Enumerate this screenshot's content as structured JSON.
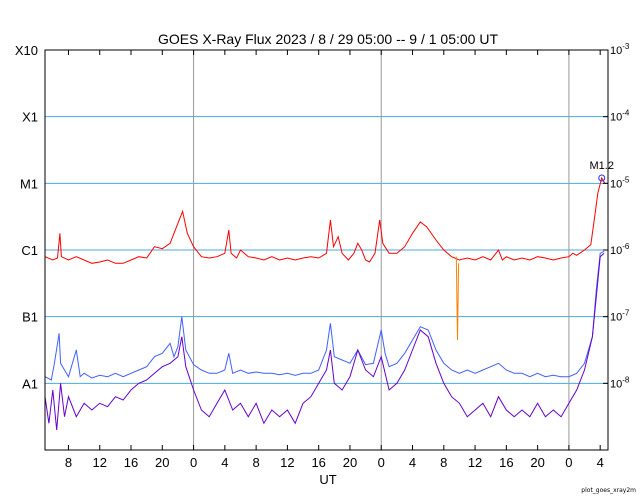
{
  "chart_data": {
    "type": "line",
    "title": "GOES X-Ray Flux   2023 /  8 / 29   05:00 --  9 /  1   05:00   UT",
    "xlabel": "UT",
    "x_tick_labels": [
      "8",
      "12",
      "16",
      "20",
      "0",
      "4",
      "8",
      "12",
      "16",
      "20",
      "0",
      "4",
      "8",
      "12",
      "16",
      "20",
      "0",
      "4"
    ],
    "x_tick_hours": [
      8,
      12,
      16,
      20,
      24,
      28,
      32,
      36,
      40,
      44,
      48,
      52,
      56,
      60,
      64,
      68,
      72,
      76
    ],
    "day_boundaries_hours": [
      24,
      48,
      72
    ],
    "xlim_hours": [
      5,
      77
    ],
    "y_left_labels": [
      "X10",
      "X1",
      "M1",
      "C1",
      "B1",
      "A1"
    ],
    "y_right_labels": [
      "10",
      "10",
      "10",
      "10",
      "10",
      "10"
    ],
    "y_right_exponents": [
      "-3",
      "-4",
      "-5",
      "-6",
      "-7",
      "-8"
    ],
    "y_log_values": [
      -3,
      -4,
      -5,
      -6,
      -7,
      -8
    ],
    "ylim_log": [
      -9,
      -3
    ],
    "y_scale": "log",
    "grid": true,
    "annotation": {
      "text": "M1.2",
      "x_hour": 76.2,
      "log_value": -4.92
    },
    "series": [
      {
        "color": "#ff0000",
        "points": [
          [
            5,
            -6.1
          ],
          [
            6,
            -6.15
          ],
          [
            6.6,
            -6.12
          ],
          [
            6.9,
            -5.75
          ],
          [
            7.1,
            -6.1
          ],
          [
            8,
            -6.15
          ],
          [
            9,
            -6.1
          ],
          [
            10,
            -6.15
          ],
          [
            11,
            -6.2
          ],
          [
            12,
            -6.18
          ],
          [
            13,
            -6.15
          ],
          [
            14,
            -6.2
          ],
          [
            15,
            -6.2
          ],
          [
            16,
            -6.15
          ],
          [
            17,
            -6.1
          ],
          [
            18,
            -6.12
          ],
          [
            19,
            -5.95
          ],
          [
            20,
            -5.98
          ],
          [
            21,
            -5.9
          ],
          [
            22,
            -5.6
          ],
          [
            22.6,
            -5.42
          ],
          [
            23.2,
            -5.75
          ],
          [
            24,
            -5.95
          ],
          [
            25,
            -6.1
          ],
          [
            26,
            -6.12
          ],
          [
            27,
            -6.1
          ],
          [
            28,
            -6.05
          ],
          [
            28.5,
            -5.7
          ],
          [
            28.8,
            -6.05
          ],
          [
            29.5,
            -6.12
          ],
          [
            30,
            -6.0
          ],
          [
            31,
            -6.1
          ],
          [
            32,
            -6.12
          ],
          [
            33,
            -6.15
          ],
          [
            34,
            -6.1
          ],
          [
            35,
            -6.15
          ],
          [
            36,
            -6.12
          ],
          [
            37,
            -6.15
          ],
          [
            38,
            -6.12
          ],
          [
            39,
            -6.1
          ],
          [
            40,
            -6.12
          ],
          [
            41,
            -6.05
          ],
          [
            41.5,
            -5.55
          ],
          [
            41.9,
            -5.95
          ],
          [
            42.5,
            -5.8
          ],
          [
            43,
            -6.05
          ],
          [
            43.8,
            -6.15
          ],
          [
            44.5,
            -6.05
          ],
          [
            45,
            -5.9
          ],
          [
            45.5,
            -6.0
          ],
          [
            46,
            -6.15
          ],
          [
            46.5,
            -6.18
          ],
          [
            47.2,
            -6.05
          ],
          [
            47.8,
            -5.55
          ],
          [
            48.2,
            -5.9
          ],
          [
            49,
            -6.05
          ],
          [
            50,
            -6.05
          ],
          [
            51,
            -5.95
          ],
          [
            52,
            -5.75
          ],
          [
            53,
            -5.58
          ],
          [
            53.8,
            -5.65
          ],
          [
            55,
            -5.85
          ],
          [
            56,
            -6.0
          ],
          [
            57,
            -6.1
          ],
          [
            58,
            -6.15
          ],
          [
            59,
            -6.12
          ],
          [
            60,
            -6.15
          ],
          [
            61,
            -6.1
          ],
          [
            62,
            -6.15
          ],
          [
            63,
            -6.0
          ],
          [
            63.5,
            -6.15
          ],
          [
            64,
            -6.1
          ],
          [
            65,
            -6.15
          ],
          [
            66,
            -6.12
          ],
          [
            67,
            -6.15
          ],
          [
            68,
            -6.1
          ],
          [
            69,
            -6.12
          ],
          [
            70,
            -6.15
          ],
          [
            71,
            -6.12
          ],
          [
            72,
            -6.1
          ],
          [
            72.5,
            -6.05
          ],
          [
            73,
            -6.08
          ],
          [
            74,
            -6.0
          ],
          [
            74.8,
            -5.92
          ],
          [
            75.3,
            -5.5
          ],
          [
            75.7,
            -5.15
          ],
          [
            76.2,
            -4.92
          ],
          [
            76.6,
            -5.0
          ]
        ]
      },
      {
        "color": "#ff8000",
        "points": [
          [
            57.6,
            -6.1
          ],
          [
            57.75,
            -7.35
          ],
          [
            57.9,
            -6.2
          ]
        ]
      },
      {
        "color": "#4060ff",
        "points": [
          [
            5,
            -7.9
          ],
          [
            5.8,
            -7.95
          ],
          [
            6.2,
            -7.7
          ],
          [
            6.8,
            -7.25
          ],
          [
            7.0,
            -7.7
          ],
          [
            7.5,
            -7.8
          ],
          [
            8,
            -7.9
          ],
          [
            9,
            -7.5
          ],
          [
            9.5,
            -7.9
          ],
          [
            10,
            -7.85
          ],
          [
            11,
            -7.92
          ],
          [
            12,
            -7.88
          ],
          [
            13,
            -7.9
          ],
          [
            14,
            -7.85
          ],
          [
            15,
            -7.9
          ],
          [
            16,
            -7.85
          ],
          [
            17,
            -7.8
          ],
          [
            18,
            -7.75
          ],
          [
            19,
            -7.6
          ],
          [
            20,
            -7.55
          ],
          [
            21,
            -7.4
          ],
          [
            21.5,
            -7.6
          ],
          [
            22,
            -7.45
          ],
          [
            22.5,
            -7.0
          ],
          [
            23,
            -7.5
          ],
          [
            24,
            -7.72
          ],
          [
            25,
            -7.8
          ],
          [
            26,
            -7.85
          ],
          [
            27,
            -7.85
          ],
          [
            28,
            -7.8
          ],
          [
            28.5,
            -7.55
          ],
          [
            29,
            -7.85
          ],
          [
            30,
            -7.8
          ],
          [
            31,
            -7.85
          ],
          [
            32,
            -7.83
          ],
          [
            33,
            -7.85
          ],
          [
            34,
            -7.85
          ],
          [
            35,
            -7.87
          ],
          [
            36,
            -7.85
          ],
          [
            37,
            -7.88
          ],
          [
            38,
            -7.85
          ],
          [
            39,
            -7.85
          ],
          [
            40,
            -7.8
          ],
          [
            41,
            -7.5
          ],
          [
            41.5,
            -7.1
          ],
          [
            42,
            -7.6
          ],
          [
            43,
            -7.65
          ],
          [
            44,
            -7.7
          ],
          [
            45,
            -7.5
          ],
          [
            46,
            -7.72
          ],
          [
            47,
            -7.7
          ],
          [
            48,
            -7.2
          ],
          [
            48.5,
            -7.55
          ],
          [
            49,
            -7.75
          ],
          [
            50,
            -7.7
          ],
          [
            51,
            -7.55
          ],
          [
            52,
            -7.35
          ],
          [
            53,
            -7.15
          ],
          [
            54,
            -7.2
          ],
          [
            55,
            -7.5
          ],
          [
            56,
            -7.7
          ],
          [
            57,
            -7.8
          ],
          [
            58,
            -7.85
          ],
          [
            59,
            -7.8
          ],
          [
            60,
            -7.85
          ],
          [
            61,
            -7.8
          ],
          [
            62,
            -7.75
          ],
          [
            63,
            -7.7
          ],
          [
            64,
            -7.8
          ],
          [
            65,
            -7.85
          ],
          [
            66,
            -7.85
          ],
          [
            67,
            -7.9
          ],
          [
            68,
            -7.85
          ],
          [
            69,
            -7.9
          ],
          [
            70,
            -7.88
          ],
          [
            71,
            -7.9
          ],
          [
            72,
            -7.9
          ],
          [
            73,
            -7.85
          ],
          [
            74,
            -7.7
          ],
          [
            75,
            -7.3
          ],
          [
            75.5,
            -6.6
          ],
          [
            76,
            -6.05
          ],
          [
            76.5,
            -6.02
          ]
        ]
      },
      {
        "color": "#6600cc",
        "points": [
          [
            5,
            -8.2
          ],
          [
            5.5,
            -8.6
          ],
          [
            6,
            -8.1
          ],
          [
            6.5,
            -8.7
          ],
          [
            7,
            -8.0
          ],
          [
            7.5,
            -8.5
          ],
          [
            8,
            -8.2
          ],
          [
            9,
            -8.5
          ],
          [
            10,
            -8.3
          ],
          [
            11,
            -8.4
          ],
          [
            12,
            -8.3
          ],
          [
            13,
            -8.35
          ],
          [
            14,
            -8.2
          ],
          [
            15,
            -8.25
          ],
          [
            16,
            -8.1
          ],
          [
            17,
            -8.0
          ],
          [
            18,
            -7.95
          ],
          [
            19,
            -7.85
          ],
          [
            20,
            -7.75
          ],
          [
            21,
            -7.7
          ],
          [
            22,
            -7.6
          ],
          [
            22.5,
            -7.3
          ],
          [
            23,
            -7.75
          ],
          [
            24,
            -8.1
          ],
          [
            25,
            -8.4
          ],
          [
            26,
            -8.5
          ],
          [
            27,
            -8.3
          ],
          [
            28,
            -8.1
          ],
          [
            29,
            -8.4
          ],
          [
            30,
            -8.3
          ],
          [
            31,
            -8.5
          ],
          [
            32,
            -8.3
          ],
          [
            33,
            -8.6
          ],
          [
            34,
            -8.4
          ],
          [
            35,
            -8.5
          ],
          [
            36,
            -8.4
          ],
          [
            37,
            -8.6
          ],
          [
            38,
            -8.3
          ],
          [
            39,
            -8.2
          ],
          [
            40,
            -8.0
          ],
          [
            41,
            -7.8
          ],
          [
            41.5,
            -7.5
          ],
          [
            42,
            -8.0
          ],
          [
            43,
            -8.1
          ],
          [
            44,
            -7.9
          ],
          [
            45,
            -7.5
          ],
          [
            46,
            -7.8
          ],
          [
            47,
            -7.9
          ],
          [
            48,
            -7.6
          ],
          [
            49,
            -8.1
          ],
          [
            50,
            -8.0
          ],
          [
            51,
            -7.8
          ],
          [
            52,
            -7.5
          ],
          [
            53,
            -7.2
          ],
          [
            54,
            -7.3
          ],
          [
            55,
            -7.7
          ],
          [
            56,
            -8.0
          ],
          [
            57,
            -8.2
          ],
          [
            58,
            -8.3
          ],
          [
            59,
            -8.5
          ],
          [
            60,
            -8.4
          ],
          [
            61,
            -8.3
          ],
          [
            62,
            -8.5
          ],
          [
            63,
            -8.2
          ],
          [
            64,
            -8.4
          ],
          [
            65,
            -8.5
          ],
          [
            66,
            -8.4
          ],
          [
            67,
            -8.5
          ],
          [
            68,
            -8.3
          ],
          [
            69,
            -8.5
          ],
          [
            70,
            -8.4
          ],
          [
            71,
            -8.5
          ],
          [
            72,
            -8.3
          ],
          [
            73,
            -8.1
          ],
          [
            74,
            -7.8
          ],
          [
            75,
            -7.3
          ],
          [
            75.5,
            -6.7
          ],
          [
            76,
            -6.1
          ],
          [
            76.5,
            -6.05
          ]
        ]
      }
    ]
  },
  "footer_note": "plot_goes_xray2m"
}
